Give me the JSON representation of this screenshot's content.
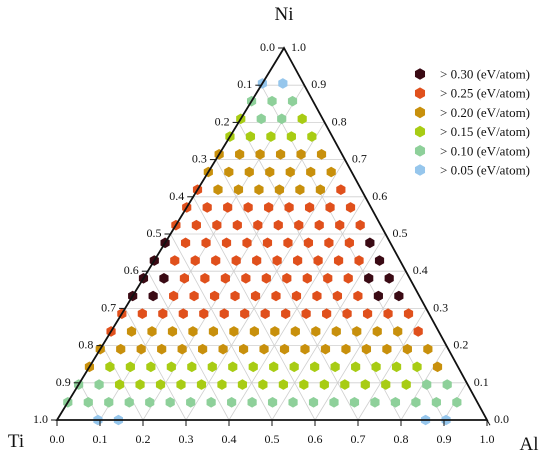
{
  "chart_data": {
    "type": "scatter",
    "subtype": "ternary",
    "grid": true,
    "legend_position": "top-right",
    "vertices": {
      "top": "Ni",
      "left": "Ti",
      "right": "Al"
    },
    "axis_ticks": {
      "bottom": [
        "0.0",
        "0.1",
        "0.2",
        "0.3",
        "0.4",
        "0.5",
        "0.6",
        "0.7",
        "0.8",
        "0.9",
        "1.0"
      ],
      "left": [
        "0.0",
        "0.1",
        "0.2",
        "0.3",
        "0.4",
        "0.5",
        "0.6",
        "0.7",
        "0.8",
        "0.9",
        "1.0"
      ],
      "right": [
        "1.0",
        "0.9",
        "0.8",
        "0.7",
        "0.6",
        "0.5",
        "0.4",
        "0.3",
        "0.2",
        "0.1",
        "0.0"
      ]
    },
    "grid_step": 0.1,
    "marker_step": 0.05,
    "categories": [
      {
        "label": "> 0.30 (eV/atom)",
        "color": "#3a0a14"
      },
      {
        "label": "> 0.25 (eV/atom)",
        "color": "#e0501c"
      },
      {
        "label": "> 0.20 (eV/atom)",
        "color": "#c8900c"
      },
      {
        "label": "> 0.15 (eV/atom)",
        "color": "#a8cc14"
      },
      {
        "label": "> 0.10 (eV/atom)",
        "color": "#8ed09a"
      },
      {
        "label": "> 0.05 (eV/atom)",
        "color": "#96c6ec"
      }
    ],
    "points_by_row": [
      [],
      [],
      [
        5,
        5
      ],
      [
        4,
        4,
        4
      ],
      [
        3,
        4,
        4,
        3
      ],
      [
        3,
        3,
        3,
        3,
        3
      ],
      [
        2,
        2,
        2,
        2,
        2,
        2
      ],
      [
        2,
        2,
        2,
        2,
        2,
        2,
        2
      ],
      [
        1,
        2,
        2,
        2,
        2,
        2,
        2,
        1
      ],
      [
        1,
        1,
        1,
        1,
        1,
        1,
        1,
        1,
        1
      ],
      [
        1,
        1,
        1,
        1,
        1,
        1,
        1,
        1,
        1,
        1
      ],
      [
        0,
        1,
        1,
        1,
        1,
        1,
        1,
        1,
        1,
        1,
        0
      ],
      [
        0,
        1,
        1,
        1,
        1,
        1,
        1,
        1,
        1,
        1,
        1,
        0
      ],
      [
        0,
        0,
        1,
        1,
        1,
        1,
        1,
        1,
        1,
        1,
        1,
        0,
        0
      ],
      [
        0,
        0,
        1,
        1,
        1,
        1,
        1,
        1,
        1,
        1,
        1,
        1,
        0,
        0
      ],
      [
        1,
        1,
        1,
        1,
        1,
        1,
        1,
        1,
        1,
        1,
        1,
        1,
        1,
        1,
        1
      ],
      [
        1,
        2,
        2,
        2,
        2,
        2,
        2,
        2,
        2,
        2,
        2,
        2,
        2,
        2,
        2,
        1
      ],
      [
        2,
        2,
        2,
        2,
        2,
        2,
        2,
        2,
        2,
        2,
        2,
        2,
        2,
        2,
        2,
        2,
        2
      ],
      [
        2,
        3,
        3,
        3,
        3,
        3,
        3,
        3,
        3,
        3,
        3,
        3,
        3,
        3,
        3,
        3,
        3,
        2
      ],
      [
        4,
        4,
        3,
        3,
        3,
        3,
        3,
        3,
        3,
        3,
        3,
        3,
        3,
        3,
        3,
        3,
        3,
        4,
        4
      ],
      [
        4,
        4,
        4,
        4,
        4,
        4,
        4,
        4,
        4,
        4,
        4,
        4,
        4,
        4,
        4,
        4,
        4,
        4,
        4,
        4
      ],
      [
        -1,
        -1,
        5,
        5,
        -1,
        -1,
        -1,
        -1,
        -1,
        -1,
        -1,
        -1,
        -1,
        -1,
        -1,
        -1,
        -1,
        -1,
        5,
        5,
        -1
      ]
    ]
  }
}
